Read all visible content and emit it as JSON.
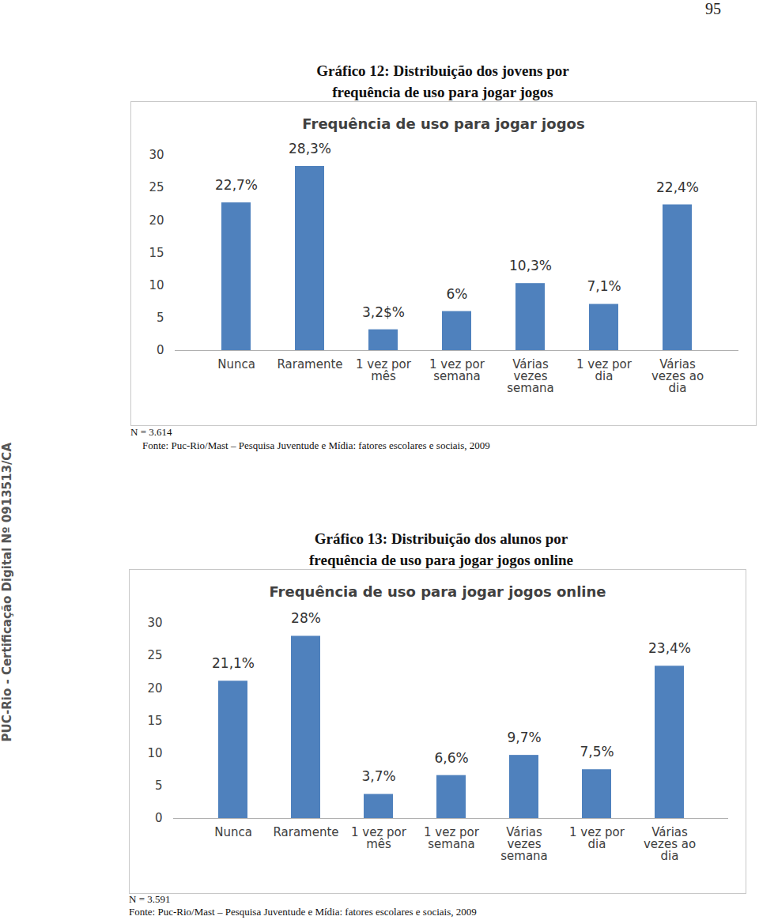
{
  "page_number": "95",
  "side_text": "PUC-Rio - Certificação Digital Nº 0913513/CA",
  "chart_data": [
    {
      "type": "bar",
      "caption": [
        "Gráfico 12: Distribuição dos jovens por",
        "frequência de uso para jogar jogos"
      ],
      "title": "Frequência de uso para jogar jogos",
      "categories": [
        "Nunca",
        "Raramente",
        "1 vez por\nmês",
        "1 vez por\nsemana",
        "Várias\nvezes\nsemana",
        "1 vez por\ndia",
        "Várias\nvezes ao\ndia"
      ],
      "values": [
        22.7,
        28.3,
        3.2,
        6,
        10.3,
        7.1,
        22.4
      ],
      "value_labels": [
        "22,7%",
        "28,3%",
        "3,2$%",
        "6%",
        "10,3%",
        "7,1%",
        "22,4%"
      ],
      "data_labels": true,
      "color": "#4f81bd",
      "ylim": [
        0,
        30
      ],
      "yticks": [
        0,
        5,
        10,
        15,
        20,
        25,
        30
      ],
      "grid": false,
      "note": "N = 3.614",
      "source": "Fonte: Puc-Rio/Mast – Pesquisa Juventude e Mídia: fatores escolares e sociais, 2009"
    },
    {
      "type": "bar",
      "caption": [
        "Gráfico 13: Distribuição dos alunos por",
        "frequência de uso para jogar jogos online"
      ],
      "title": "Frequência de uso para jogar jogos online",
      "categories": [
        "Nunca",
        "Raramente",
        "1 vez por\nmês",
        "1 vez por\nsemana",
        "Várias\nvezes\nsemana",
        "1 vez por\ndia",
        "Várias\nvezes ao\ndia"
      ],
      "values": [
        21.1,
        28,
        3.7,
        6.6,
        9.7,
        7.5,
        23.4
      ],
      "value_labels": [
        "21,1%",
        "28%",
        "3,7%",
        "6,6%",
        "9,7%",
        "7,5%",
        "23,4%"
      ],
      "data_labels": true,
      "color": "#4f81bd",
      "ylim": [
        0,
        30
      ],
      "yticks": [
        0,
        5,
        10,
        15,
        20,
        25,
        30
      ],
      "grid": false,
      "note": "N = 3.591",
      "source": "Fonte: Puc-Rio/Mast – Pesquisa Juventude e Mídia: fatores escolares e sociais, 2009"
    }
  ]
}
